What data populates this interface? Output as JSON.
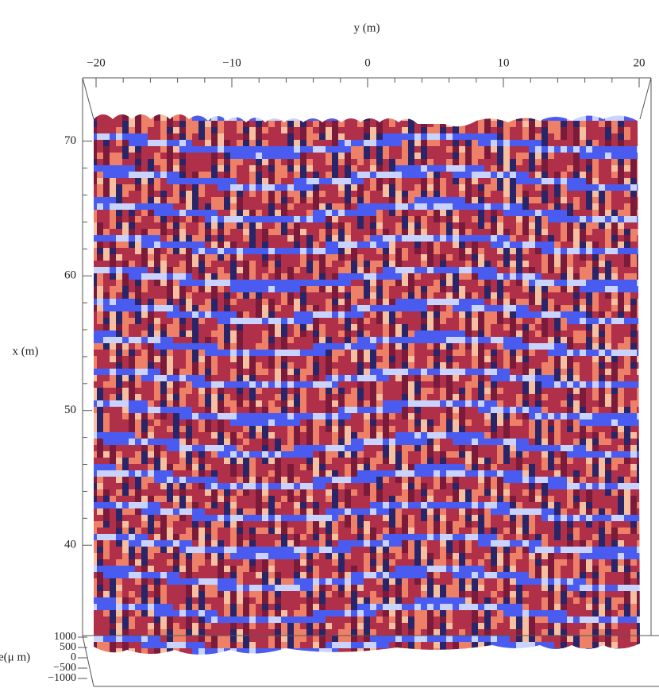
{
  "chart_data": {
    "type": "surface",
    "y_label": "y (m)",
    "x_label": "x (m)",
    "z_label": "e(μ m)",
    "ylim": [
      -20,
      20
    ],
    "yticks": [
      {
        "value": -20,
        "label": "−20"
      },
      {
        "value": -10,
        "label": "−10"
      },
      0,
      10,
      20
    ],
    "xlim": [
      32.7,
      74.7
    ],
    "xticks": [
      40,
      50,
      60,
      70
    ],
    "zlim": [
      -1000,
      1000
    ],
    "zticks": [
      1000,
      500,
      0,
      {
        "value": -500,
        "label": "−500"
      },
      {
        "value": -1000,
        "label": "−1000"
      }
    ]
  }
}
